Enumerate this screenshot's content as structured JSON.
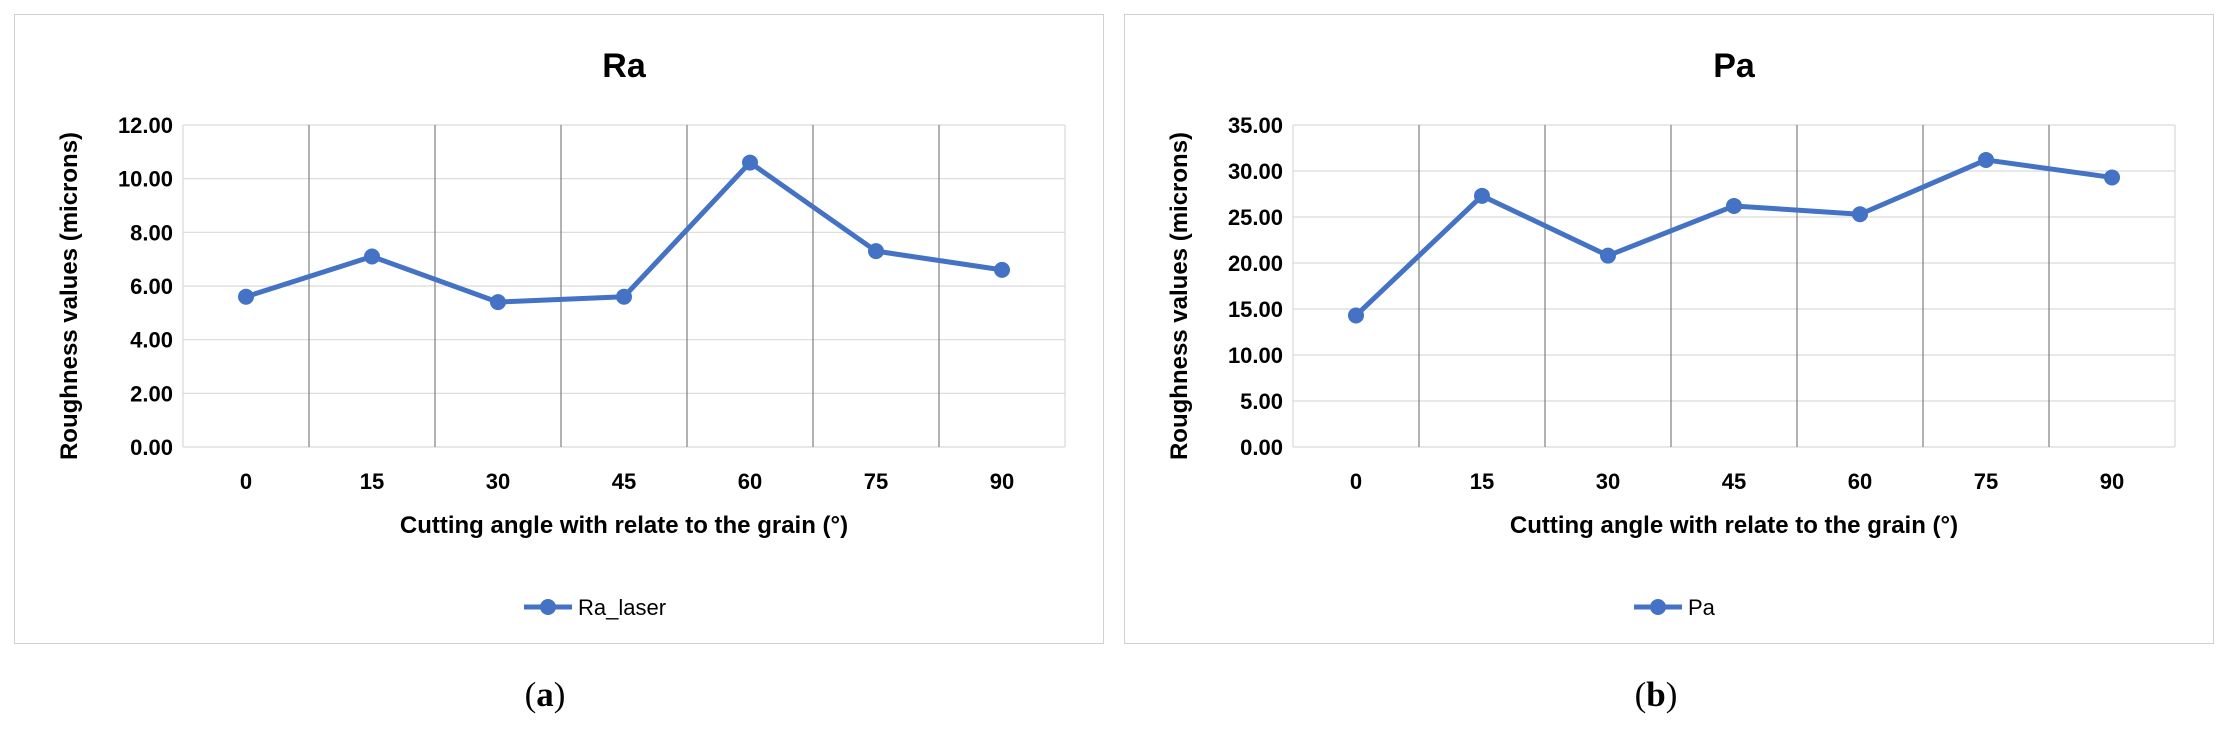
{
  "chart_data": [
    {
      "type": "line",
      "title": "Ra",
      "xlabel": "Cutting angle with relate to the grain (°)",
      "ylabel": "Roughness values (microns)",
      "categories": [
        "0",
        "15",
        "30",
        "45",
        "60",
        "75",
        "90"
      ],
      "series": [
        {
          "name": "Ra_laser",
          "values": [
            5.6,
            7.1,
            5.4,
            5.6,
            10.6,
            7.3,
            6.6
          ]
        }
      ],
      "ylim": [
        0,
        12
      ],
      "ytick_step": 2,
      "ytick_labels": [
        "0.00",
        "2.00",
        "4.00",
        "6.00",
        "8.00",
        "10.00",
        "12.00"
      ],
      "grid": "horizontal gridlines with vertical category separators",
      "legend": "bottom-center",
      "color": "#4472C4",
      "caption": "(a)"
    },
    {
      "type": "line",
      "title": "Pa",
      "xlabel": "Cutting angle with relate to the grain (°)",
      "ylabel": "Roughness values (microns)",
      "categories": [
        "0",
        "15",
        "30",
        "45",
        "60",
        "75",
        "90"
      ],
      "series": [
        {
          "name": "Pa",
          "values": [
            14.3,
            27.3,
            20.8,
            26.2,
            25.3,
            31.2,
            29.3
          ]
        }
      ],
      "ylim": [
        0,
        35
      ],
      "ytick_step": 5,
      "ytick_labels": [
        "0.00",
        "5.00",
        "10.00",
        "15.00",
        "20.00",
        "25.00",
        "30.00",
        "35.00"
      ],
      "grid": "horizontal gridlines with vertical category separators",
      "legend": "bottom-center",
      "color": "#4472C4",
      "caption": "(b)"
    }
  ],
  "captions": {
    "a": "a",
    "b": "b"
  }
}
